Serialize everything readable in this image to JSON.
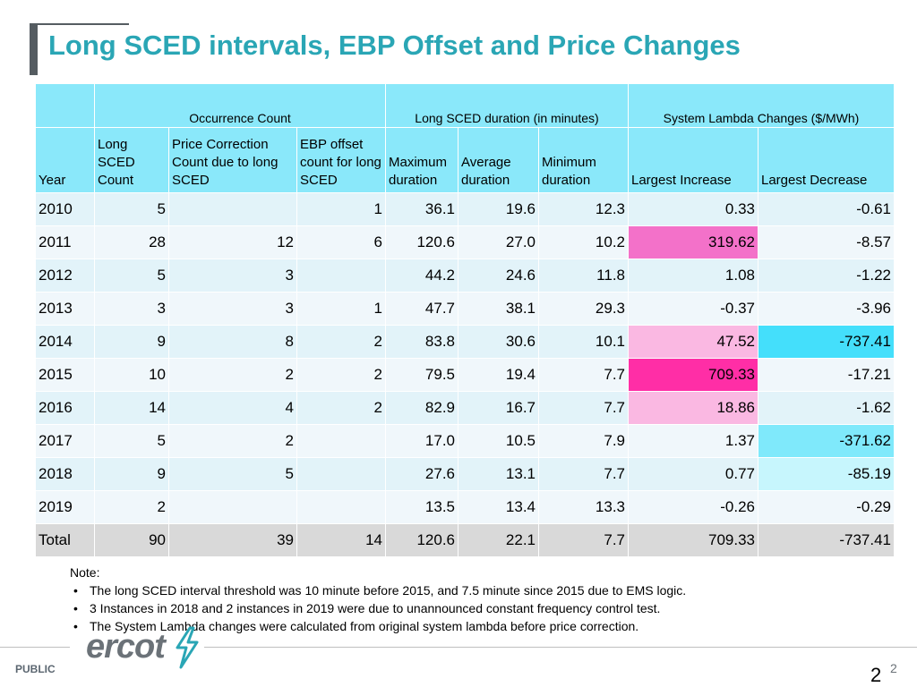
{
  "slide": {
    "title": "Long SCED intervals, EBP Offset and Price Changes",
    "footer_label": "PUBLIC",
    "page_number": "2",
    "page_sup": "2",
    "logo_text": "ercot"
  },
  "table": {
    "group_headers": {
      "occurrence": "Occurrence Count",
      "duration": "Long SCED duration (in minutes)",
      "lambda": "System Lambda Changes ($/MWh)"
    },
    "columns": {
      "year": "Year",
      "long_sced_count": "Long SCED Count",
      "price_correction": "Price Correction Count due to long SCED",
      "ebp_offset": "EBP offset count for long SCED",
      "max_duration": "Maximum duration",
      "avg_duration": "Average duration",
      "min_duration": "Minimum duration",
      "largest_increase": "Largest Increase",
      "largest_decrease": "Largest Decrease"
    },
    "rows": [
      {
        "year": "2010",
        "count": "5",
        "price_corr": "",
        "ebp": "1",
        "max": "36.1",
        "avg": "19.6",
        "min": "12.3",
        "inc": "0.33",
        "dec": "-0.61"
      },
      {
        "year": "2011",
        "count": "28",
        "price_corr": "12",
        "ebp": "6",
        "max": "120.6",
        "avg": "27.0",
        "min": "10.2",
        "inc": "319.62",
        "dec": "-8.57"
      },
      {
        "year": "2012",
        "count": "5",
        "price_corr": "3",
        "ebp": "",
        "max": "44.2",
        "avg": "24.6",
        "min": "11.8",
        "inc": "1.08",
        "dec": "-1.22"
      },
      {
        "year": "2013",
        "count": "3",
        "price_corr": "3",
        "ebp": "1",
        "max": "47.7",
        "avg": "38.1",
        "min": "29.3",
        "inc": "-0.37",
        "dec": "-3.96"
      },
      {
        "year": "2014",
        "count": "9",
        "price_corr": "8",
        "ebp": "2",
        "max": "83.8",
        "avg": "30.6",
        "min": "10.1",
        "inc": "47.52",
        "dec": "-737.41"
      },
      {
        "year": "2015",
        "count": "10",
        "price_corr": "2",
        "ebp": "2",
        "max": "79.5",
        "avg": "19.4",
        "min": "7.7",
        "inc": "709.33",
        "dec": "-17.21"
      },
      {
        "year": "2016",
        "count": "14",
        "price_corr": "4",
        "ebp": "2",
        "max": "82.9",
        "avg": "16.7",
        "min": "7.7",
        "inc": "18.86",
        "dec": "-1.62"
      },
      {
        "year": "2017",
        "count": "5",
        "price_corr": "2",
        "ebp": "",
        "max": "17.0",
        "avg": "10.5",
        "min": "7.9",
        "inc": "1.37",
        "dec": "-371.62"
      },
      {
        "year": "2018",
        "count": "9",
        "price_corr": "5",
        "ebp": "",
        "max": "27.6",
        "avg": "13.1",
        "min": "7.7",
        "inc": "0.77",
        "dec": "-85.19"
      },
      {
        "year": "2019",
        "count": "2",
        "price_corr": "",
        "ebp": "",
        "max": "13.5",
        "avg": "13.4",
        "min": "13.3",
        "inc": "-0.26",
        "dec": "-0.29"
      }
    ],
    "total": {
      "year": "Total",
      "count": "90",
      "price_corr": "39",
      "ebp": "14",
      "max": "120.6",
      "avg": "22.1",
      "min": "7.7",
      "inc": "709.33",
      "dec": "-737.41"
    }
  },
  "notes": {
    "heading": "Note:",
    "bullet": "•",
    "items": [
      "The long SCED interval threshold was 10 minute before 2015, and 7.5 minute since 2015 due to EMS logic.",
      "3 Instances in 2018 and 2 instances in 2019 were due to unannounced constant frequency control test.",
      "The System Lambda changes were calculated from original system lambda before price correction."
    ]
  },
  "colors": {
    "title": "#2aa6b5",
    "header_bg": "#8ae8fa",
    "pink_deep": "#ff2ea6",
    "pink_strong": "#f371c9",
    "pink_light": "#fab8e2",
    "cyan_strong": "#44dffb",
    "cyan_mid": "#7fe9fb",
    "cyan_light": "#c7f6fd"
  }
}
